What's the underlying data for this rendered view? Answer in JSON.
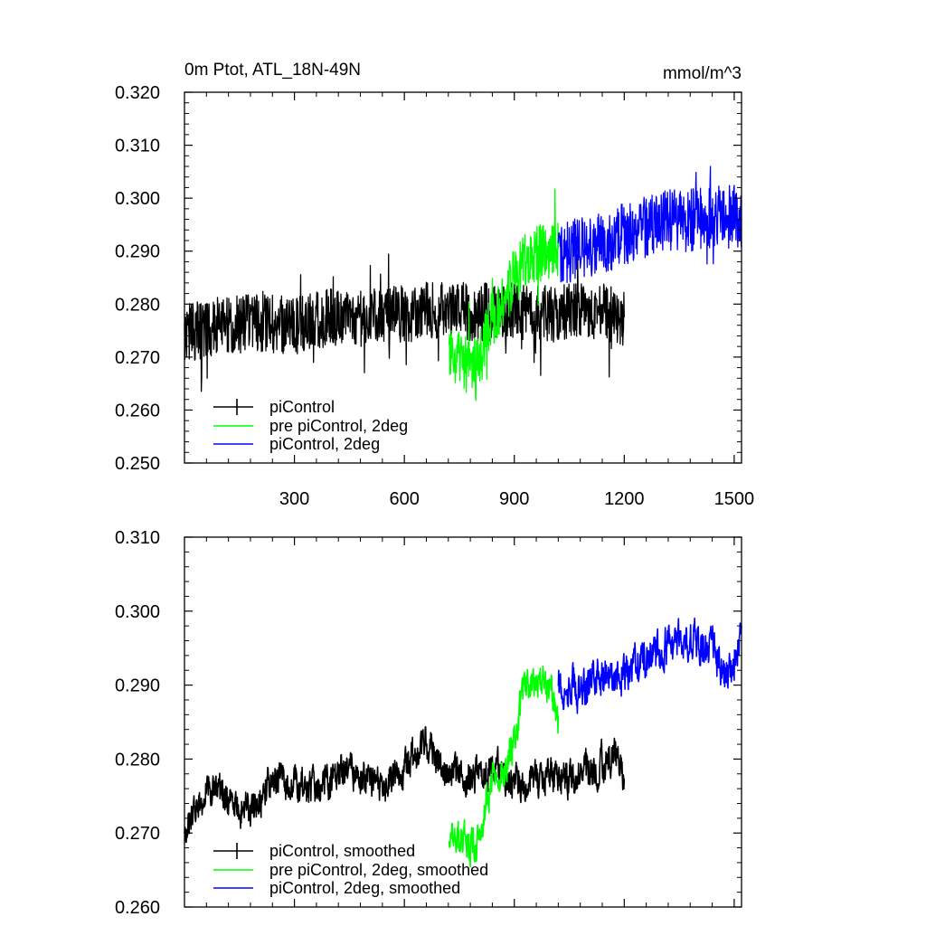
{
  "chart_data": [
    {
      "type": "line",
      "title_left": "0m Ptot, ATL_18N-49N",
      "title_right": "mmol/m^3",
      "xlabel": "",
      "ylabel": "",
      "xlim": [
        0,
        1520
      ],
      "ylim": [
        0.25,
        0.32
      ],
      "xticks": [
        "300",
        "600",
        "900",
        "1200",
        "1500"
      ],
      "xtick_values": [
        300,
        600,
        900,
        1200,
        1500
      ],
      "yticks": [
        "0.250",
        "0.260",
        "0.270",
        "0.280",
        "0.290",
        "0.300",
        "0.310",
        "0.320"
      ],
      "ytick_values": [
        0.25,
        0.26,
        0.27,
        0.28,
        0.29,
        0.3,
        0.31,
        0.32
      ],
      "series": [
        {
          "name": "piControl",
          "color": "#000000",
          "x": [
            0,
            100,
            200,
            300,
            400,
            500,
            600,
            700,
            800,
            900,
            1000,
            1100,
            1200
          ],
          "values": [
            0.2745,
            0.276,
            0.2765,
            0.276,
            0.2775,
            0.2775,
            0.278,
            0.279,
            0.2785,
            0.2785,
            0.278,
            0.279,
            0.2775
          ],
          "amplitude": 0.0055
        },
        {
          "name": "pre piControl, 2deg",
          "color": "#00ff00",
          "x": [
            722,
            760,
            800,
            840,
            880,
            920,
            960,
            1000,
            1020
          ],
          "values": [
            0.2705,
            0.269,
            0.268,
            0.2775,
            0.282,
            0.288,
            0.2895,
            0.2905,
            0.29
          ],
          "amplitude": 0.0055
        },
        {
          "name": "piControl, 2deg",
          "color": "#0000ff",
          "x": [
            1020,
            1100,
            1200,
            1300,
            1400,
            1500,
            1520
          ],
          "values": [
            0.2895,
            0.291,
            0.293,
            0.2955,
            0.296,
            0.2965,
            0.2965
          ],
          "amplitude": 0.006
        }
      ],
      "legend": [
        "piControl",
        "pre piControl, 2deg",
        "piControl, 2deg"
      ],
      "legend_position": "bottom-left"
    },
    {
      "type": "line",
      "title_left": "",
      "title_right": "",
      "xlabel": "",
      "ylabel": "",
      "xlim": [
        0,
        1520
      ],
      "ylim": [
        0.26,
        0.31
      ],
      "xticks": [],
      "xtick_values": [
        300,
        600,
        900,
        1200,
        1500
      ],
      "yticks": [
        "0.260",
        "0.270",
        "0.280",
        "0.290",
        "0.300",
        "0.310"
      ],
      "ytick_values": [
        0.26,
        0.27,
        0.28,
        0.29,
        0.3,
        0.31
      ],
      "series": [
        {
          "name": "piControl, smoothed",
          "color": "#000000",
          "x": [
            0,
            60,
            120,
            180,
            240,
            300,
            360,
            420,
            480,
            540,
            600,
            660,
            700,
            760,
            820,
            880,
            940,
            1000,
            1060,
            1120,
            1180,
            1200
          ],
          "values": [
            0.2705,
            0.276,
            0.2745,
            0.2725,
            0.2775,
            0.2765,
            0.2755,
            0.2785,
            0.2775,
            0.2755,
            0.2785,
            0.2825,
            0.2785,
            0.2775,
            0.279,
            0.278,
            0.2765,
            0.2775,
            0.2775,
            0.2785,
            0.281,
            0.2765
          ],
          "amplitude": 0.0025
        },
        {
          "name": "pre piControl, 2deg, smoothed",
          "color": "#00ff00",
          "x": [
            722,
            760,
            800,
            840,
            880,
            920,
            960,
            1000,
            1020
          ],
          "values": [
            0.2695,
            0.2685,
            0.2685,
            0.278,
            0.2795,
            0.2875,
            0.2905,
            0.2895,
            0.2845
          ],
          "amplitude": 0.0025
        },
        {
          "name": "piControl, 2deg, smoothed",
          "color": "#0000ff",
          "x": [
            1020,
            1080,
            1140,
            1200,
            1260,
            1320,
            1380,
            1440,
            1480,
            1520
          ],
          "values": [
            0.2905,
            0.2895,
            0.2915,
            0.2915,
            0.2935,
            0.2955,
            0.296,
            0.2945,
            0.2915,
            0.2965
          ],
          "amplitude": 0.0028
        }
      ],
      "legend": [
        "piControl, smoothed",
        "pre piControl, 2deg, smoothed",
        "piControl, 2deg, smoothed"
      ],
      "legend_position": "bottom-left"
    }
  ]
}
